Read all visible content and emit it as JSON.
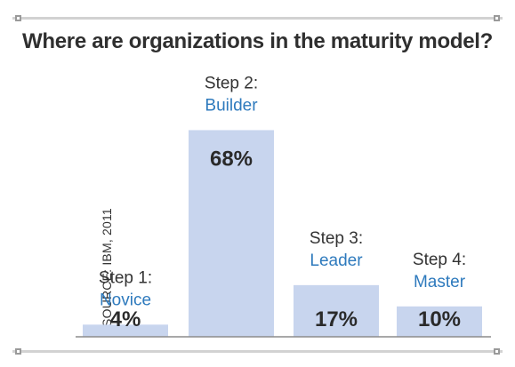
{
  "colors": {
    "bar": "#c8d5ee",
    "baseline": "#8c8c8c",
    "step_name": "#2e7abd",
    "step_word": "#333333",
    "title": "#2f2f2f"
  },
  "chart_data": {
    "type": "bar",
    "title": "Where are organizations in the maturity model?",
    "source": "SOURCE: IBM, 2011",
    "categories": [
      "Step 1:",
      "Step 2:",
      "Step 3:",
      "Step 4:"
    ],
    "stage_names": [
      "Novice",
      "Builder",
      "Leader",
      "Master"
    ],
    "values": [
      4,
      68,
      17,
      10
    ],
    "value_labels": [
      "4%",
      "68%",
      "17%",
      "10%"
    ],
    "ylim": [
      0,
      70
    ],
    "grid": false,
    "legend": "none"
  }
}
